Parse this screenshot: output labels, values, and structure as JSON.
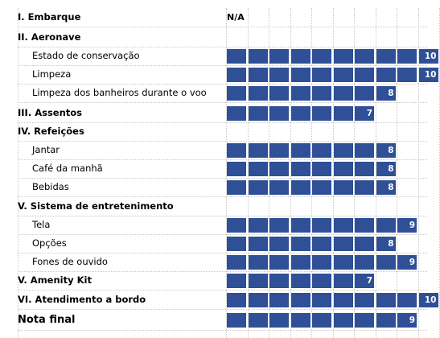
{
  "chart_data": {
    "type": "bar",
    "title": "",
    "xlabel": "",
    "ylabel": "",
    "xlim": [
      0,
      10
    ],
    "rows": [
      {
        "label": "I. Embarque",
        "kind": "section",
        "value": null,
        "value_text": "N/A"
      },
      {
        "label": "II. Aeronave",
        "kind": "section",
        "value": null
      },
      {
        "label": "Estado de conservação",
        "kind": "item",
        "value": 10
      },
      {
        "label": "Limpeza",
        "kind": "item",
        "value": 10
      },
      {
        "label": "Limpeza dos banheiros durante o voo",
        "kind": "item",
        "value": 8
      },
      {
        "label": "III. Assentos",
        "kind": "section",
        "value": 7
      },
      {
        "label": "IV. Refeições",
        "kind": "section",
        "value": null
      },
      {
        "label": "Jantar",
        "kind": "item",
        "value": 8
      },
      {
        "label": "Café da manhã",
        "kind": "item",
        "value": 8
      },
      {
        "label": "Bebidas",
        "kind": "item",
        "value": 8
      },
      {
        "label": "V. Sistema de entretenimento",
        "kind": "section",
        "value": null
      },
      {
        "label": "Tela",
        "kind": "item",
        "value": 9
      },
      {
        "label": "Opções",
        "kind": "item",
        "value": 8
      },
      {
        "label": "Fones de ouvido",
        "kind": "item",
        "value": 9
      },
      {
        "label": "V. Amenity Kit",
        "kind": "section",
        "value": 7
      },
      {
        "label": "VI. Atendimento a bordo",
        "kind": "section",
        "value": 10
      },
      {
        "label": "Nota final",
        "kind": "final",
        "value": 9
      }
    ],
    "colors": {
      "bar": "#2F4F96",
      "value_text": "#FFFFFF",
      "grid": "#C8C8C8"
    }
  }
}
